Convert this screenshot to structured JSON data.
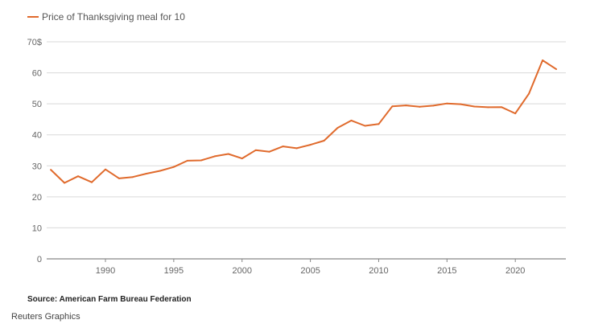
{
  "chart_data": {
    "type": "line",
    "title": "",
    "xlabel": "",
    "ylabel": "",
    "series": [
      {
        "name": "Price of Thanksgiving meal for 10",
        "color": "#e06a2c",
        "x": [
          1986,
          1987,
          1988,
          1989,
          1990,
          1991,
          1992,
          1993,
          1994,
          1995,
          1996,
          1997,
          1998,
          1999,
          2000,
          2001,
          2002,
          2003,
          2004,
          2005,
          2006,
          2007,
          2008,
          2009,
          2010,
          2011,
          2012,
          2013,
          2014,
          2015,
          2016,
          2017,
          2018,
          2019,
          2020,
          2021,
          2022,
          2023
        ],
        "values": [
          28.74,
          24.51,
          26.65,
          24.7,
          28.85,
          25.95,
          26.39,
          27.49,
          28.4,
          29.64,
          31.66,
          31.75,
          33.09,
          33.83,
          32.37,
          35.04,
          34.56,
          36.28,
          35.68,
          36.78,
          38.1,
          42.26,
          44.61,
          42.91,
          43.47,
          49.2,
          49.48,
          49.04,
          49.41,
          50.11,
          49.87,
          49.12,
          48.9,
          48.91,
          46.9,
          53.31,
          64.05,
          61.17
        ]
      }
    ],
    "x_ticks": [
      "1990",
      "1995",
      "2000",
      "2005",
      "2010",
      "2015",
      "2020"
    ],
    "y_ticks": [
      "0",
      "10",
      "20",
      "30",
      "40",
      "50",
      "60",
      "70$"
    ],
    "xlim": [
      1985.7,
      2023.7
    ],
    "ylim": [
      0,
      70
    ],
    "grid": true,
    "legend": "top-left"
  },
  "footer": {
    "source": "Source: American Farm Bureau Federation",
    "credit": "Reuters Graphics"
  }
}
